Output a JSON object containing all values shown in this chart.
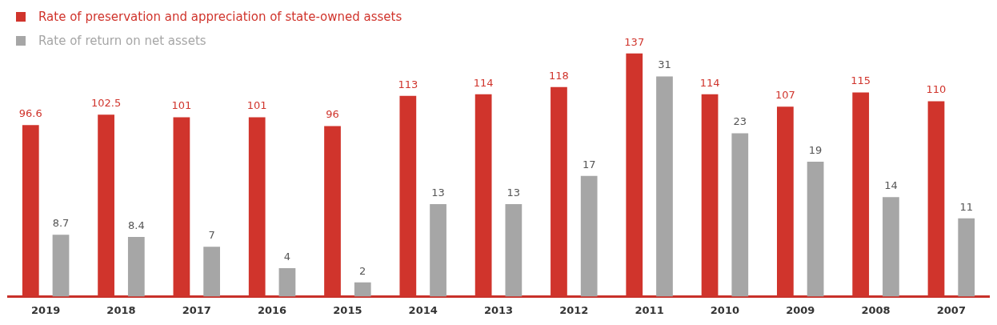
{
  "chart_data": {
    "type": "bar",
    "categories": [
      "2019",
      "2018",
      "2017",
      "2016",
      "2015",
      "2014",
      "2013",
      "2012",
      "2011",
      "2010",
      "2009",
      "2008",
      "2007"
    ],
    "series": [
      {
        "name": "Rate of preservation and appreciation of state-owned assets",
        "color": "#d0342c",
        "values": [
          96.6,
          102.5,
          101,
          101,
          96,
          113,
          114,
          118,
          137,
          114,
          107,
          115,
          110
        ]
      },
      {
        "name": "Rate of return on net assets",
        "color": "#a6a6a6",
        "axis": "y2",
        "values": [
          8.7,
          8.4,
          7,
          4,
          2,
          13,
          13,
          17,
          31,
          23,
          19,
          14,
          11
        ]
      }
    ],
    "tick_labels": "x",
    "grid": false,
    "legend": "top left",
    "data_labels": true
  }
}
